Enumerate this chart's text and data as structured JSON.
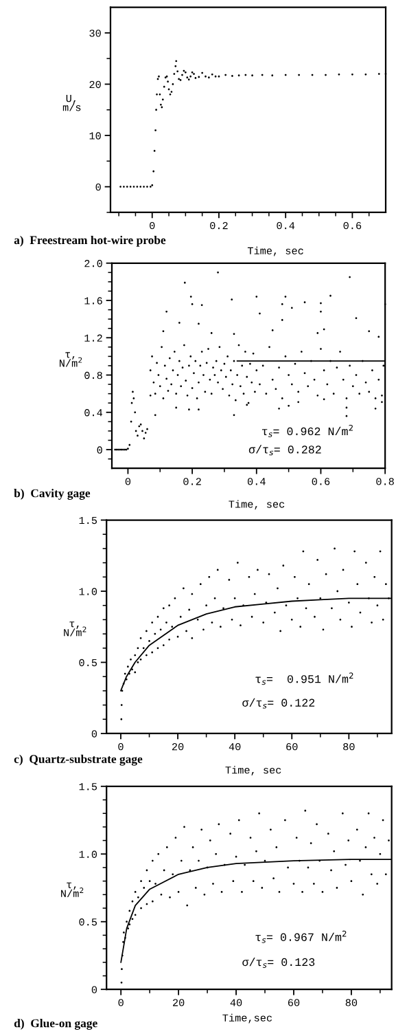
{
  "chart_data": [
    {
      "type": "scatter",
      "title": "a)  Freestream hot-wire probe",
      "xlabel": "Time, sec",
      "ylabel": "U,\nm/s",
      "xlim": [
        -0.125,
        0.7
      ],
      "ylim": [
        -5,
        35
      ],
      "xticks": [
        {
          "value": -0.1,
          "label": null
        },
        {
          "value": -0.05,
          "label": null
        },
        0,
        {
          "value": 0.05,
          "label": null
        },
        {
          "value": 0.1,
          "label": null
        },
        {
          "value": 0.15,
          "label": null
        },
        0.2,
        {
          "value": 0.25,
          "label": null
        },
        {
          "value": 0.3,
          "label": null
        },
        {
          "value": 0.35,
          "label": null
        },
        0.4,
        {
          "value": 0.45,
          "label": null
        },
        {
          "value": 0.5,
          "label": null
        },
        {
          "value": 0.55,
          "label": null
        },
        0.6,
        {
          "value": 0.65,
          "label": null
        }
      ],
      "yticks": [
        {
          "value": -5,
          "label": null
        },
        0,
        {
          "value": 5,
          "label": null
        },
        10,
        {
          "value": 15,
          "label": null
        },
        20,
        {
          "value": 25,
          "label": null
        },
        30
      ],
      "series": [
        {
          "marker": "circle",
          "color": "#000000",
          "x": [
            -0.095,
            -0.085,
            -0.075,
            -0.065,
            -0.055,
            -0.045,
            -0.035,
            -0.025,
            -0.015,
            -0.005,
            0.0,
            0.004,
            0.007,
            0.01,
            0.012,
            0.014,
            0.017,
            0.02,
            0.023,
            0.026,
            0.029,
            0.032,
            0.036,
            0.04,
            0.044,
            0.047,
            0.05,
            0.054,
            0.058,
            0.062,
            0.066,
            0.07,
            0.072,
            0.076,
            0.08,
            0.085,
            0.09,
            0.095,
            0.1,
            0.105,
            0.11,
            0.115,
            0.12,
            0.125,
            0.13,
            0.14,
            0.15,
            0.16,
            0.17,
            0.18,
            0.19,
            0.2,
            0.22,
            0.24,
            0.26,
            0.28,
            0.3,
            0.33,
            0.36,
            0.4,
            0.44,
            0.48,
            0.52,
            0.56,
            0.6,
            0.64,
            0.68,
            0.7
          ],
          "values": [
            0,
            0,
            0,
            0,
            0,
            0,
            0,
            0,
            0,
            0,
            0.3,
            3,
            7,
            11,
            15,
            18,
            21,
            21.5,
            18,
            16,
            15.5,
            17,
            19.5,
            21.3,
            21.5,
            20.5,
            19,
            18,
            18.5,
            20,
            22,
            23.5,
            24.5,
            22.5,
            21,
            20.8,
            21.8,
            22.6,
            22.3,
            21.3,
            20.9,
            21.5,
            22.3,
            22,
            21.2,
            21.4,
            22.2,
            21.5,
            21.3,
            21.9,
            21.5,
            21.5,
            21.8,
            21.6,
            21.7,
            21.8,
            21.7,
            21.8,
            21.7,
            21.8,
            21.8,
            21.8,
            21.8,
            21.9,
            21.9,
            21.9,
            22.0,
            22.0
          ]
        }
      ]
    },
    {
      "type": "scatter",
      "title": "b)  Cavity gage",
      "xlabel": "Time, sec",
      "ylabel": "τ,\nN/m$^{2}$",
      "annotations": [
        "τ$_{s}$= 0.962 N/m$^{2}$",
        "σ/τ$_{s}$= 0.282"
      ],
      "xlim": [
        -0.05,
        0.8
      ],
      "ylim": [
        -0.2,
        2.0
      ],
      "xticks": [
        0,
        {
          "value": 0.1,
          "label": null
        },
        0.2,
        {
          "value": 0.3,
          "label": null
        },
        0.4,
        {
          "value": 0.5,
          "label": null
        },
        0.6,
        {
          "value": 0.7,
          "label": null
        },
        0.8
      ],
      "yticks": [
        {
          "value": -0.1,
          "label": null
        },
        0,
        {
          "value": 0.1,
          "label": null
        },
        {
          "value": 0.2,
          "label": null
        },
        {
          "value": 0.3,
          "label": null
        },
        0.4,
        {
          "value": 0.5,
          "label": null
        },
        {
          "value": 0.6,
          "label": null
        },
        {
          "value": 0.7,
          "label": null
        },
        0.8,
        {
          "value": 0.9,
          "label": null
        },
        {
          "value": 1.0,
          "label": null
        },
        {
          "value": 1.1,
          "label": null
        },
        1.2,
        {
          "value": 1.3,
          "label": null
        },
        {
          "value": 1.4,
          "label": null
        },
        {
          "value": 1.5,
          "label": null
        },
        1.6,
        {
          "value": 1.7,
          "label": null
        },
        {
          "value": 1.8,
          "label": null
        },
        {
          "value": 1.9,
          "label": null
        },
        {
          "value": 2.0,
          "label": "2.0"
        }
      ],
      "series": [
        {
          "marker": "circle",
          "color": "#000000",
          "x": [
            -0.04,
            -0.035,
            -0.03,
            -0.025,
            -0.02,
            -0.015,
            -0.01,
            -0.005,
            0.0,
            0.005,
            0.01,
            0.012,
            0.015,
            0.018,
            0.022,
            0.025,
            0.03,
            0.035,
            0.04,
            0.045,
            0.05,
            0.055,
            0.06,
            0.07,
            0.075,
            0.08,
            0.085,
            0.09,
            0.095,
            0.1,
            0.105,
            0.11,
            0.115,
            0.12,
            0.125,
            0.13,
            0.135,
            0.14,
            0.145,
            0.15,
            0.155,
            0.16,
            0.165,
            0.17,
            0.175,
            0.18,
            0.185,
            0.19,
            0.195,
            0.2,
            0.205,
            0.21,
            0.215,
            0.22,
            0.225,
            0.23,
            0.235,
            0.24,
            0.245,
            0.25,
            0.255,
            0.26,
            0.265,
            0.27,
            0.275,
            0.28,
            0.285,
            0.29,
            0.295,
            0.3,
            0.305,
            0.31,
            0.315,
            0.32,
            0.325,
            0.33,
            0.335,
            0.34,
            0.345,
            0.35,
            0.355,
            0.36,
            0.365,
            0.37,
            0.375,
            0.38,
            0.385,
            0.39,
            0.395,
            0.4,
            0.41,
            0.42,
            0.43,
            0.44,
            0.45,
            0.46,
            0.47,
            0.48,
            0.49,
            0.5,
            0.51,
            0.52,
            0.53,
            0.54,
            0.55,
            0.56,
            0.57,
            0.58,
            0.59,
            0.6,
            0.61,
            0.62,
            0.63,
            0.64,
            0.65,
            0.66,
            0.67,
            0.68,
            0.69,
            0.7,
            0.71,
            0.72,
            0.73,
            0.74,
            0.75,
            0.76,
            0.77,
            0.78,
            0.79,
            0.795,
            0.28,
            0.177,
            0.69,
            0.196,
            0.323,
            0.4,
            0.49,
            0.63,
            0.12,
            0.2,
            0.23,
            0.48,
            0.51,
            0.55,
            0.6,
            0.6,
            0.71,
            0.41,
            0.48,
            0.16,
            0.22,
            0.8,
            0.11,
            0.26,
            0.33,
            0.59,
            0.61,
            0.75,
            0.45,
            0.78,
            0.085,
            0.33,
            0.68,
            0.77,
            0.47,
            0.22,
            0.19,
            0.15,
            0.5,
            0.61,
            0.68,
            0.07,
            0.37,
            0.53,
            0.79
          ],
          "values": [
            0,
            0,
            0,
            0,
            0,
            0,
            0,
            0,
            0.01,
            0.05,
            0.3,
            0.5,
            0.62,
            0.55,
            0.4,
            0.2,
            0.15,
            0.25,
            0.27,
            0.2,
            0.12,
            0.18,
            0.22,
            0.85,
            1.0,
            0.72,
            0.6,
            0.93,
            0.8,
            0.68,
            1.1,
            0.55,
            0.9,
            0.76,
            0.63,
            0.98,
            0.7,
            0.85,
            1.05,
            0.6,
            0.8,
            0.95,
            0.68,
            0.88,
            1.12,
            0.74,
            0.58,
            0.9,
            1.0,
            0.66,
            0.82,
            0.95,
            0.55,
            0.72,
            0.9,
            1.05,
            0.8,
            0.62,
            0.93,
            1.08,
            0.75,
            0.6,
            0.88,
            0.8,
            0.95,
            0.72,
            1.1,
            0.85,
            0.65,
            0.92,
            0.78,
            1.0,
            0.58,
            0.85,
            0.7,
            0.95,
            0.53,
            0.8,
            1.12,
            0.68,
            0.9,
            0.6,
            1.05,
            0.78,
            0.5,
            0.92,
            0.72,
            1.03,
            0.62,
            0.85,
            0.7,
            0.9,
            0.6,
            1.1,
            0.75,
            0.65,
            0.88,
            0.55,
            1.0,
            0.8,
            0.7,
            0.92,
            0.62,
            1.05,
            0.82,
            0.68,
            0.95,
            0.75,
            0.58,
            1.08,
            0.85,
            0.7,
            0.95,
            0.6,
            0.88,
            1.05,
            0.75,
            0.55,
            0.9,
            0.68,
            0.8,
            0.6,
            0.95,
            0.72,
            0.62,
            0.85,
            0.55,
            0.75,
            0.58,
            0.9,
            1.9,
            1.79,
            1.85,
            1.64,
            1.61,
            1.64,
            1.64,
            1.65,
            1.48,
            1.56,
            1.55,
            1.56,
            1.52,
            1.58,
            1.57,
            1.48,
            1.41,
            1.46,
            1.39,
            1.36,
            1.35,
            1.56,
            1.27,
            1.25,
            1.24,
            1.25,
            1.29,
            1.27,
            1.28,
            1.21,
            0.37,
            0.37,
            0.36,
            0.44,
            0.44,
            0.43,
            0.43,
            0.45,
            0.47,
            0.54,
            0.45,
            0.58,
            0.48,
            0.51,
            0.51
          ]
        },
        {
          "type": "line",
          "color": "#000000",
          "x": [
            0.34,
            0.8
          ],
          "values": [
            0.95,
            0.95
          ]
        }
      ]
    },
    {
      "type": "scatter",
      "title": "c)  Quartz-substrate gage",
      "xlabel": "Time, sec",
      "ylabel": "τ,\nN/m$^{2}$",
      "annotations": [
        "τ$_{s}$=  0.951 N/m$^{2}$",
        "σ/τ$_{s}$= 0.122"
      ],
      "xlim": [
        -5,
        95
      ],
      "ylim": [
        0,
        1.5
      ],
      "xticks": [
        0,
        {
          "value": 10,
          "label": null
        },
        20,
        {
          "value": 30,
          "label": null
        },
        40,
        {
          "value": 50,
          "label": null
        },
        60,
        {
          "value": 70,
          "label": null
        },
        80,
        {
          "value": 90,
          "label": null
        }
      ],
      "yticks": [
        0,
        {
          "value": 0.1,
          "label": null
        },
        {
          "value": 0.2,
          "label": null
        },
        {
          "value": 0.3,
          "label": null
        },
        {
          "value": 0.4,
          "label": null
        },
        0.5,
        {
          "value": 0.6,
          "label": null
        },
        {
          "value": 0.7,
          "label": null
        },
        {
          "value": 0.8,
          "label": null
        },
        {
          "value": 0.9,
          "label": null
        },
        {
          "value": 1.0,
          "label": "1.0"
        },
        {
          "value": 1.1,
          "label": null
        },
        {
          "value": 1.2,
          "label": null
        },
        {
          "value": 1.3,
          "label": null
        },
        {
          "value": 1.4,
          "label": null
        },
        1.5
      ],
      "series": [
        {
          "marker": "circle",
          "color": "#000000",
          "x": [
            0.2,
            0.3,
            0.5,
            1,
            1.5,
            2,
            2.5,
            3,
            3.5,
            4,
            5,
            5,
            6,
            6,
            7,
            7,
            8,
            9,
            9,
            10,
            11,
            11,
            12,
            13,
            13,
            14,
            15,
            15,
            16,
            17,
            17,
            18,
            19,
            20,
            21,
            22,
            23,
            24,
            25,
            25,
            27,
            28,
            29,
            30,
            31,
            32,
            33,
            34,
            35,
            36,
            38,
            39,
            40,
            41,
            42,
            43,
            45,
            46,
            47,
            48,
            50,
            51,
            52,
            54,
            55,
            56,
            57,
            58,
            60,
            61,
            62,
            63,
            64,
            65,
            66,
            68,
            69,
            70,
            71,
            72,
            74,
            75,
            76,
            77,
            78,
            80,
            81,
            82,
            83,
            84,
            86,
            87,
            88,
            89,
            90,
            91,
            92,
            93,
            94
          ],
          "values": [
            0.1,
            0.2,
            0.3,
            0.35,
            0.42,
            0.38,
            0.47,
            0.42,
            0.52,
            0.45,
            0.55,
            0.43,
            0.6,
            0.5,
            0.67,
            0.52,
            0.6,
            0.72,
            0.55,
            0.65,
            0.78,
            0.57,
            0.7,
            0.82,
            0.6,
            0.73,
            0.88,
            0.62,
            0.78,
            0.9,
            0.66,
            0.75,
            0.95,
            0.68,
            0.82,
            1.02,
            0.72,
            0.87,
            0.98,
            0.67,
            0.8,
            1.05,
            0.73,
            0.9,
            1.1,
            0.78,
            0.95,
            1.15,
            0.75,
            0.88,
            1.08,
            0.8,
            0.95,
            1.2,
            0.76,
            0.9,
            1.1,
            0.82,
            0.98,
            1.15,
            0.78,
            0.92,
            1.12,
            0.85,
            1.02,
            0.72,
            1.18,
            0.9,
            0.8,
            1.1,
            0.95,
            0.75,
            1.28,
            0.88,
            1.05,
            0.82,
            1.22,
            0.95,
            0.73,
            1.12,
            0.88,
            1.3,
            1.0,
            0.8,
            1.15,
            0.92,
            0.75,
            1.28,
            1.05,
            0.85,
            1.2,
            0.95,
            0.78,
            1.1,
            0.9,
            1.28,
            0.8,
            1.05,
            0.95
          ]
        },
        {
          "type": "line",
          "color": "#000000",
          "x": [
            0,
            2,
            5,
            10,
            20,
            30,
            40,
            50,
            60,
            70,
            80,
            95
          ],
          "values": [
            0.3,
            0.4,
            0.5,
            0.62,
            0.76,
            0.84,
            0.89,
            0.91,
            0.93,
            0.94,
            0.95,
            0.95
          ]
        }
      ]
    },
    {
      "type": "scatter",
      "title": "d)  Glue-on gage",
      "xlabel": "Time,sec",
      "ylabel": "τ,\nN/m$^{2}$",
      "annotations": [
        "τ$_{s}$= 0.967 N/m$^{2}$",
        "σ/τ$_{s}$= 0.123"
      ],
      "xlim": [
        -5,
        94
      ],
      "ylim": [
        0,
        1.5
      ],
      "xticks": [
        0,
        {
          "value": 10,
          "label": null
        },
        20,
        {
          "value": 30,
          "label": null
        },
        40,
        {
          "value": 50,
          "label": null
        },
        60,
        {
          "value": 70,
          "label": null
        },
        80,
        {
          "value": 90,
          "label": null
        }
      ],
      "yticks": [
        0,
        {
          "value": 0.1,
          "label": null
        },
        {
          "value": 0.2,
          "label": null
        },
        {
          "value": 0.3,
          "label": null
        },
        {
          "value": 0.4,
          "label": null
        },
        0.5,
        {
          "value": 0.6,
          "label": null
        },
        {
          "value": 0.7,
          "label": null
        },
        {
          "value": 0.8,
          "label": null
        },
        {
          "value": 0.9,
          "label": null
        },
        {
          "value": 1.0,
          "label": "1.0"
        },
        {
          "value": 1.1,
          "label": null
        },
        {
          "value": 1.2,
          "label": null
        },
        {
          "value": 1.3,
          "label": null
        },
        {
          "value": 1.4,
          "label": null
        },
        1.5
      ],
      "series": [
        {
          "marker": "circle",
          "color": "#000000",
          "x": [
            0.2,
            0.3,
            0.5,
            0.8,
            1,
            1.5,
            2,
            2.5,
            3,
            3,
            4,
            4,
            5,
            5,
            6,
            7,
            7,
            8,
            9,
            9,
            10,
            11,
            11,
            12,
            13,
            14,
            15,
            16,
            17,
            18,
            19,
            20,
            21,
            22,
            23,
            24,
            25,
            26,
            27,
            28,
            29,
            30,
            31,
            32,
            33,
            34,
            35,
            36,
            38,
            39,
            40,
            41,
            42,
            43,
            45,
            46,
            47,
            48,
            49,
            50,
            52,
            53,
            54,
            55,
            57,
            58,
            60,
            61,
            62,
            63,
            64,
            65,
            66,
            67,
            68,
            69,
            70,
            72,
            73,
            74,
            75,
            77,
            78,
            79,
            80,
            82,
            83,
            84,
            85,
            86,
            87,
            88,
            89,
            90,
            91,
            92,
            93
          ],
          "values": [
            0.05,
            0.15,
            0.25,
            0.35,
            0.42,
            0.38,
            0.5,
            0.45,
            0.58,
            0.48,
            0.65,
            0.52,
            0.72,
            0.55,
            0.68,
            0.8,
            0.6,
            0.75,
            0.88,
            0.63,
            0.8,
            0.95,
            0.65,
            0.78,
            1.0,
            0.7,
            0.88,
            1.05,
            0.68,
            0.85,
            1.12,
            0.72,
            0.95,
            1.2,
            0.62,
            0.88,
            1.05,
            0.75,
            0.95,
            1.18,
            0.7,
            0.9,
            1.1,
            0.78,
            1.0,
            1.22,
            0.72,
            0.92,
            1.15,
            0.8,
            0.98,
            1.25,
            0.72,
            0.92,
            1.12,
            0.8,
            1.02,
            1.3,
            0.75,
            0.95,
            1.18,
            0.82,
            1.05,
            0.72,
            1.25,
            0.9,
            0.78,
            1.12,
            0.95,
            0.72,
            1.32,
            0.9,
            1.08,
            0.78,
            1.22,
            0.95,
            0.72,
            1.15,
            0.88,
            1.02,
            0.75,
            1.3,
            0.92,
            1.1,
            0.8,
            1.18,
            0.95,
            0.7,
            1.05,
            1.3,
            0.85,
            1.12,
            0.78,
            1.0,
            1.25,
            0.85,
            1.1
          ]
        },
        {
          "type": "line",
          "color": "#000000",
          "x": [
            0,
            2,
            5,
            10,
            20,
            30,
            40,
            60,
            80,
            94
          ],
          "values": [
            0.2,
            0.45,
            0.62,
            0.74,
            0.85,
            0.9,
            0.93,
            0.95,
            0.96,
            0.96
          ]
        }
      ]
    }
  ]
}
